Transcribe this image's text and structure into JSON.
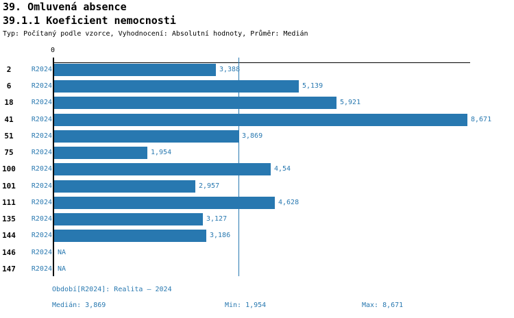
{
  "page": {
    "accent": "#2878b0",
    "background": "#ffffff"
  },
  "header": {
    "title": "39. Omluvená absence",
    "subtitle": "39.1.1 Koeficient nemocnosti",
    "meta": "Typ: Počítaný podle vzorce, Vyhodnocení: Absolutní hodnoty, Průměr: Medián"
  },
  "chart_data": {
    "type": "bar",
    "orientation": "horizontal",
    "title": "39.1.1 Koeficient nemocnosti",
    "zero_tick_label": "0",
    "xlim": [
      0,
      8.76
    ],
    "grid": false,
    "bar_color": "#2878b0",
    "categories": [
      "2",
      "6",
      "18",
      "41",
      "51",
      "75",
      "100",
      "101",
      "111",
      "135",
      "144",
      "146",
      "147"
    ],
    "series_label": "R2024",
    "rows": [
      {
        "id": "2",
        "series": "R2024",
        "value": 3.388,
        "display": "3,388"
      },
      {
        "id": "6",
        "series": "R2024",
        "value": 5.139,
        "display": "5,139"
      },
      {
        "id": "18",
        "series": "R2024",
        "value": 5.921,
        "display": "5,921"
      },
      {
        "id": "41",
        "series": "R2024",
        "value": 8.671,
        "display": "8,671"
      },
      {
        "id": "51",
        "series": "R2024",
        "value": 3.869,
        "display": "3,869"
      },
      {
        "id": "75",
        "series": "R2024",
        "value": 1.954,
        "display": "1,954"
      },
      {
        "id": "100",
        "series": "R2024",
        "value": 4.54,
        "display": "4,54"
      },
      {
        "id": "101",
        "series": "R2024",
        "value": 2.957,
        "display": "2,957"
      },
      {
        "id": "111",
        "series": "R2024",
        "value": 4.628,
        "display": "4,628"
      },
      {
        "id": "135",
        "series": "R2024",
        "value": 3.127,
        "display": "3,127"
      },
      {
        "id": "144",
        "series": "R2024",
        "value": 3.186,
        "display": "3,186"
      },
      {
        "id": "146",
        "series": "R2024",
        "value": null,
        "display": "NA"
      },
      {
        "id": "147",
        "series": "R2024",
        "value": null,
        "display": "NA"
      }
    ],
    "median_line": {
      "value": 3.869,
      "display": "3,869"
    },
    "stats": {
      "median": 3.869,
      "min": 1.954,
      "max": 8.671
    }
  },
  "footer": {
    "period": "Období[R2024]: Realita – 2024",
    "median": "Medián: 3,869",
    "min": "Min: 1,954",
    "max": "Max: 8,671"
  }
}
